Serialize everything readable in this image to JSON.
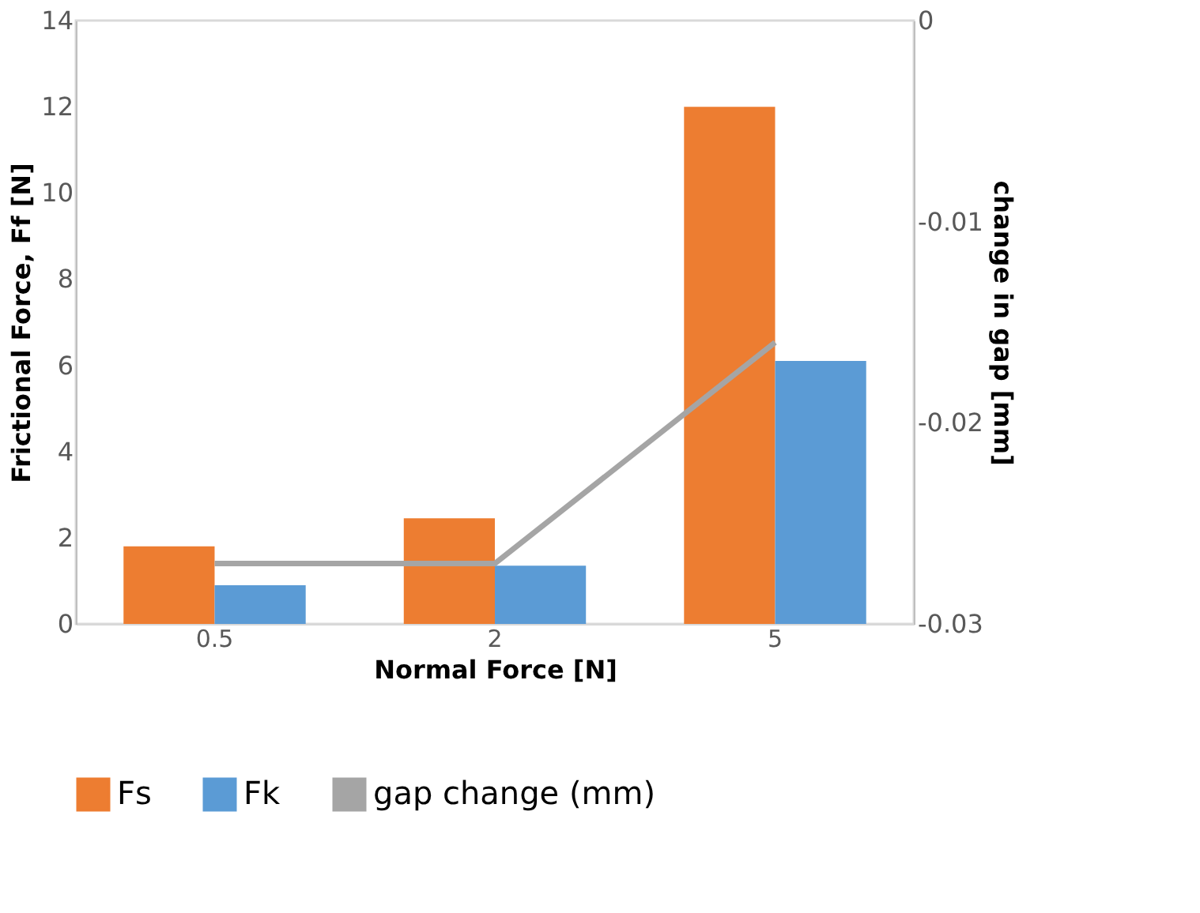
{
  "chart_data": {
    "type": "bar",
    "xlabel": "Normal Force [N]",
    "ylabel": "Frictional Force, Ff [N]",
    "y2label": "change in gap [mm]",
    "categories": [
      "0.5",
      "2",
      "5"
    ],
    "series": [
      {
        "name": "Fs",
        "color": "#ed7d31",
        "values": [
          1.8,
          2.45,
          12
        ]
      },
      {
        "name": "Fk",
        "color": "#5b9bd5",
        "values": [
          0.9,
          1.35,
          6.1
        ]
      },
      {
        "name": "gap change (mm)",
        "type": "line",
        "axis": "y2",
        "color": "#a5a5a5",
        "values": [
          -0.027,
          -0.027,
          -0.016
        ]
      }
    ],
    "ylim": [
      0,
      14
    ],
    "yticks": [
      0,
      2,
      4,
      6,
      8,
      10,
      12,
      14
    ],
    "y2lim": [
      -0.03,
      0
    ],
    "y2ticks": [
      -0.03,
      -0.02,
      -0.01,
      0
    ],
    "grid": false,
    "legend": "bottom",
    "marker": "none"
  }
}
